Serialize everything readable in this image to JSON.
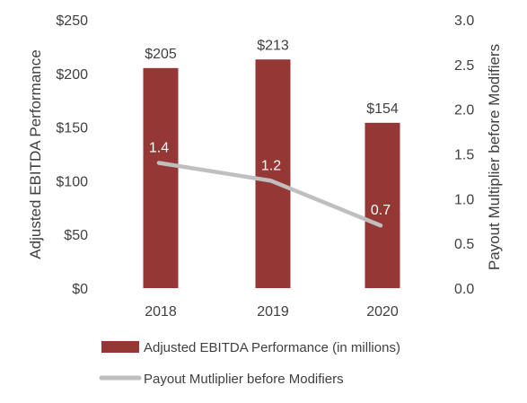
{
  "chart_data": {
    "type": "bar",
    "categories": [
      "2018",
      "2019",
      "2020"
    ],
    "series": [
      {
        "name": "Adjusted EBITDA Performance (in millions)",
        "type": "bar",
        "axis": "left",
        "values": [
          205,
          213,
          154
        ],
        "data_labels": [
          "$205",
          "$213",
          "$154"
        ],
        "color": "#953735"
      },
      {
        "name": "Payout Mutliplier before Modifiers",
        "type": "line",
        "axis": "right",
        "values": [
          1.4,
          1.2,
          0.7
        ],
        "data_labels": [
          "1.4",
          "1.2",
          "0.7"
        ],
        "color": "#BFBFBF"
      }
    ],
    "y_left": {
      "label": "Adjusted EBITDA Performance",
      "lim": [
        0,
        250
      ],
      "ticks": [
        0,
        50,
        100,
        150,
        200,
        250
      ],
      "tick_labels": [
        "$0",
        "$50",
        "$100",
        "$150",
        "$200",
        "$250"
      ]
    },
    "y_right": {
      "label": "Payout Multiplier before Modifiers",
      "lim": [
        0,
        3.0
      ],
      "ticks": [
        0,
        0.5,
        1.0,
        1.5,
        2.0,
        2.5,
        3.0
      ],
      "tick_labels": [
        "0.0",
        "0.5",
        "1.0",
        "1.5",
        "2.0",
        "2.5",
        "3.0"
      ]
    },
    "grid": false,
    "legend": "bottom",
    "title": ""
  }
}
